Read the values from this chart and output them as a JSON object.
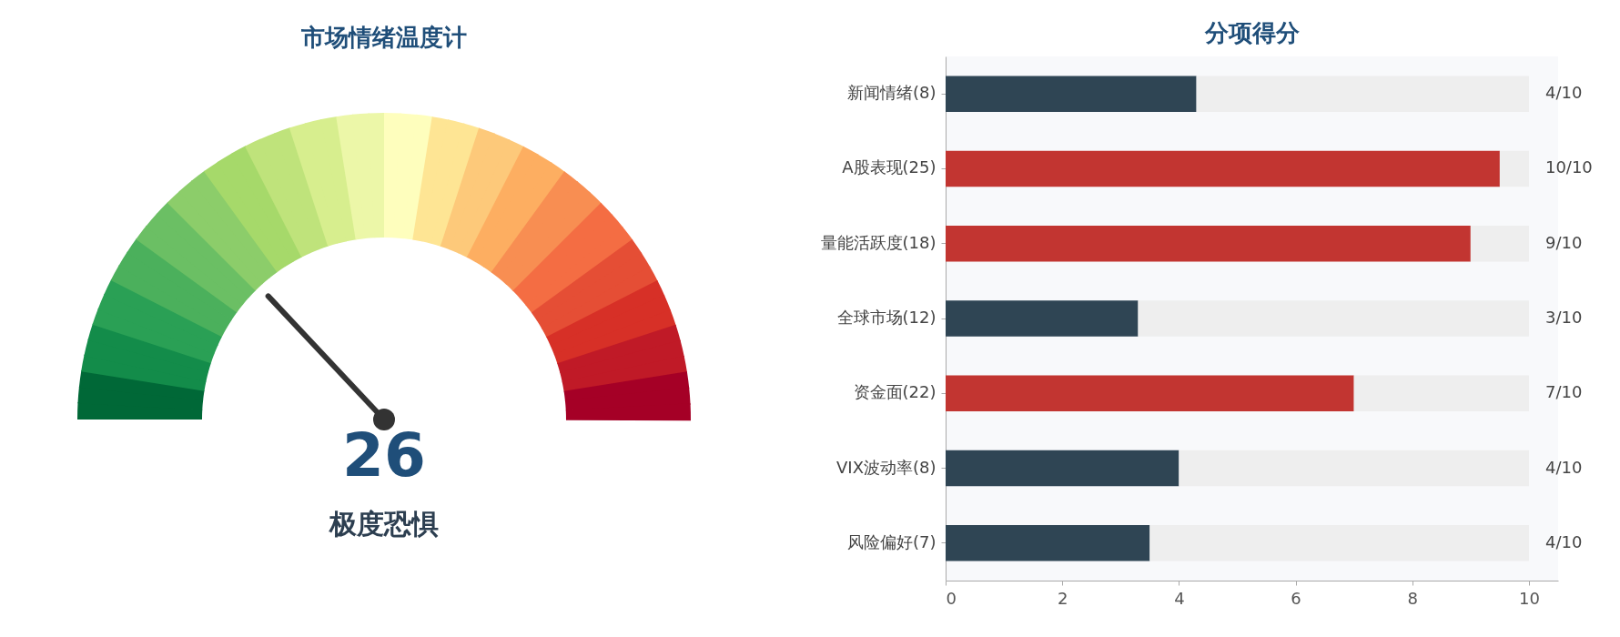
{
  "chart_data": [
    {
      "type": "other",
      "title": "市场情绪温度计",
      "annotations": [
        "26",
        "极度恐惧"
      ]
    },
    {
      "type": "bar",
      "orientation": "horizontal",
      "stacked": true,
      "title": "分项得分",
      "categories": [
        "新闻情绪(8)",
        "A股表现(25)",
        "量能活跃度(18)",
        "全球市场(12)",
        "资金面(22)",
        "VIX波动率(8)",
        "风险偏好(7)"
      ],
      "series": [
        {
          "colors": [
            "#2f4554",
            "#c23531",
            "#c23531",
            "#2f4554",
            "#c23531",
            "#2f4554",
            "#2f4554"
          ],
          "values": [
            4.3,
            9.5,
            9.0,
            3.3,
            7.0,
            4.0,
            3.5
          ]
        },
        {
          "color": "#eeeeee",
          "values": [
            5.7,
            0.5,
            1.0,
            6.7,
            3.0,
            6.0,
            6.5
          ]
        }
      ],
      "annotations": [
        "4/10",
        "10/10",
        "9/10",
        "3/10",
        "7/10",
        "4/10",
        "4/10"
      ],
      "xlim": [
        0,
        10.5
      ],
      "xticks": [
        0,
        2,
        4,
        6,
        8,
        10
      ],
      "grid": false
    }
  ]
}
